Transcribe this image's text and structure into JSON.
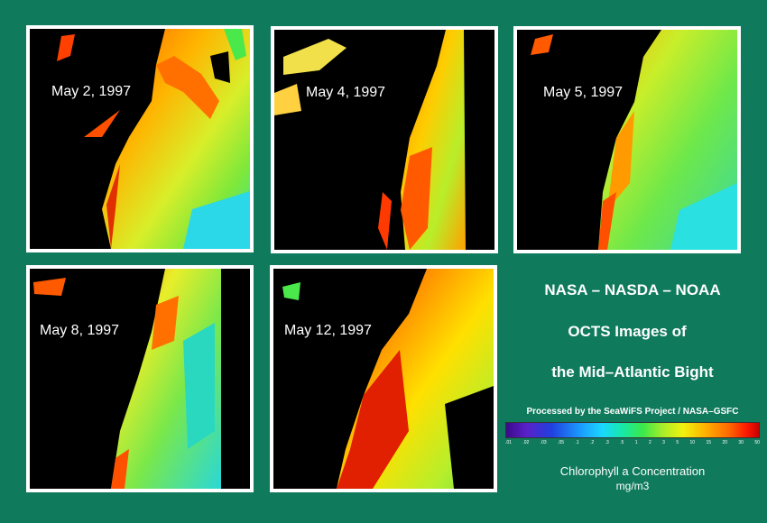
{
  "panels": [
    {
      "label": "May 2, 1997"
    },
    {
      "label": "May 4, 1997"
    },
    {
      "label": "May 5, 1997"
    },
    {
      "label": "May 8, 1997"
    },
    {
      "label": "May 12, 1997"
    }
  ],
  "titles": {
    "line1": "NASA – NASDA – NOAA",
    "line2": "OCTS Images of",
    "line3": "the Mid–Atlantic Bight",
    "credit": "Processed by the SeaWiFS Project / NASA–GSFC"
  },
  "legend": {
    "ticks": [
      ".01",
      ".02",
      ".03",
      ".05",
      ".1",
      ".2",
      ".3",
      ".5",
      "1",
      "2",
      "3",
      "5",
      "10",
      "15",
      "20",
      "30",
      "50"
    ],
    "label": "Chlorophyll a Concentration",
    "unit": "mg/m3"
  },
  "colors": {
    "background": "#0f7a5c",
    "land": "#000000",
    "border": "#ffffff"
  }
}
